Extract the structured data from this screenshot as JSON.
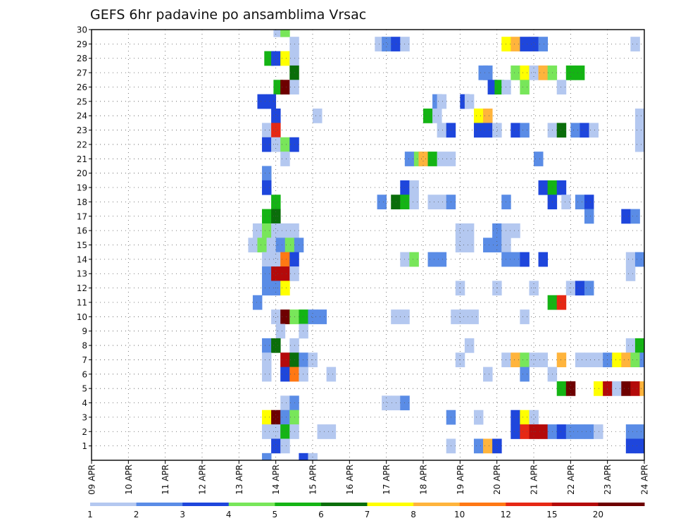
{
  "chart_data": {
    "type": "heatmap",
    "title": "GEFS 6hr padavine po ansamblima Vrsac",
    "xlabel": "",
    "ylabel": "",
    "x_tick_labels": [
      "09 APR",
      "10 APR",
      "11 APR",
      "12 APR",
      "13 APR",
      "14 APR",
      "15 APR",
      "16 APR",
      "17 APR",
      "18 APR",
      "19 APR",
      "20 APR",
      "21 APR",
      "22 APR",
      "23 APR",
      "24 APR"
    ],
    "y_tick_labels": [
      "1",
      "2",
      "3",
      "4",
      "5",
      "6",
      "7",
      "8",
      "9",
      "10",
      "11",
      "12",
      "13",
      "14",
      "15",
      "16",
      "17",
      "18",
      "19",
      "20",
      "21",
      "22",
      "23",
      "24",
      "25",
      "26",
      "27",
      "28",
      "29",
      "30"
    ],
    "x_unit": "6-hour step since 09 APR 00Z",
    "x_range": [
      0,
      60
    ],
    "y_range": [
      0,
      30
    ],
    "grid": true,
    "legend_placement": "bottom",
    "legend": {
      "labels": [
        "1",
        "2",
        "3",
        "4",
        "5",
        "6",
        "7",
        "8",
        "10",
        "12",
        "15",
        "20"
      ],
      "bins": [
        {
          "from": 1,
          "to": 2,
          "color": "#b4c8f0"
        },
        {
          "from": 2,
          "to": 3,
          "color": "#5a8ce6"
        },
        {
          "from": 3,
          "to": 4,
          "color": "#1e46dc"
        },
        {
          "from": 4,
          "to": 5,
          "color": "#78e65a"
        },
        {
          "from": 5,
          "to": 6,
          "color": "#14b414"
        },
        {
          "from": 6,
          "to": 7,
          "color": "#0a6e0a"
        },
        {
          "from": 7,
          "to": 8,
          "color": "#ffff00"
        },
        {
          "from": 8,
          "to": 10,
          "color": "#ffb43c"
        },
        {
          "from": 10,
          "to": 12,
          "color": "#ff7814"
        },
        {
          "from": 12,
          "to": 15,
          "color": "#e62814"
        },
        {
          "from": 15,
          "to": 20,
          "color": "#b40a0a"
        },
        {
          "from": 20,
          "to": 30,
          "color": "#6e0000"
        }
      ]
    },
    "cells": [
      {
        "member": 30,
        "cells": [
          [
            20.25,
            0
          ],
          [
            21,
            3
          ]
        ]
      },
      {
        "member": 29,
        "cells": [
          [
            22,
            0
          ],
          [
            31.25,
            0
          ],
          [
            32,
            1
          ],
          [
            33,
            2
          ],
          [
            34,
            0
          ],
          [
            45,
            6
          ],
          [
            46,
            7
          ],
          [
            47,
            2
          ],
          [
            48,
            2
          ],
          [
            49,
            1
          ],
          [
            59,
            0
          ]
        ]
      },
      {
        "member": 28,
        "cells": [
          [
            19.25,
            4
          ],
          [
            20,
            2
          ],
          [
            21,
            6
          ],
          [
            22,
            0
          ]
        ]
      },
      {
        "member": 27,
        "cells": [
          [
            22,
            5
          ],
          [
            42.5,
            1
          ],
          [
            43,
            1
          ],
          [
            46,
            3
          ],
          [
            47,
            6
          ],
          [
            48,
            0
          ],
          [
            49,
            7
          ],
          [
            50,
            3
          ],
          [
            52,
            4
          ],
          [
            53,
            4
          ]
        ]
      },
      {
        "member": 26,
        "cells": [
          [
            20.25,
            4
          ],
          [
            21,
            11
          ],
          [
            22,
            0
          ],
          [
            43.5,
            2
          ],
          [
            44.25,
            4
          ],
          [
            45,
            0
          ],
          [
            47,
            3
          ],
          [
            51,
            0
          ]
        ]
      },
      {
        "member": 25,
        "cells": [
          [
            18.5,
            2
          ],
          [
            19.5,
            2
          ],
          [
            37.5,
            1
          ],
          [
            38,
            0
          ],
          [
            40.5,
            2
          ],
          [
            41,
            0
          ]
        ]
      },
      {
        "member": 24,
        "cells": [
          [
            20,
            2
          ],
          [
            24.5,
            0
          ],
          [
            36.5,
            4
          ],
          [
            37.5,
            0
          ],
          [
            42,
            6
          ],
          [
            43,
            7
          ],
          [
            59.5,
            0
          ]
        ]
      },
      {
        "member": 23,
        "cells": [
          [
            19,
            0
          ],
          [
            20,
            9
          ],
          [
            38,
            0
          ],
          [
            39,
            2
          ],
          [
            42,
            2
          ],
          [
            43,
            2
          ],
          [
            44,
            0
          ],
          [
            46,
            2
          ],
          [
            47,
            1
          ],
          [
            50,
            0
          ],
          [
            51,
            5
          ],
          [
            52.5,
            1
          ],
          [
            53.5,
            2
          ],
          [
            54.5,
            0
          ],
          [
            59.5,
            0
          ]
        ]
      },
      {
        "member": 22,
        "cells": [
          [
            19,
            2
          ],
          [
            20,
            0
          ],
          [
            21,
            3
          ],
          [
            22,
            2
          ],
          [
            59.5,
            0
          ]
        ]
      },
      {
        "member": 21,
        "cells": [
          [
            21,
            0
          ],
          [
            34.5,
            1
          ],
          [
            35.5,
            3
          ],
          [
            36,
            7
          ],
          [
            37,
            4
          ],
          [
            38,
            0
          ],
          [
            39,
            0
          ],
          [
            48.5,
            1
          ]
        ]
      },
      {
        "member": 20,
        "cells": [
          [
            19,
            1
          ]
        ]
      },
      {
        "member": 19,
        "cells": [
          [
            19,
            2
          ],
          [
            34,
            2
          ],
          [
            35,
            0
          ],
          [
            49,
            2
          ],
          [
            50,
            4
          ],
          [
            51,
            2
          ]
        ]
      },
      {
        "member": 18,
        "cells": [
          [
            20,
            4
          ],
          [
            31.5,
            1
          ],
          [
            33,
            5
          ],
          [
            34,
            4
          ],
          [
            35,
            0
          ],
          [
            37,
            0
          ],
          [
            38,
            0
          ],
          [
            39,
            1
          ],
          [
            45,
            1
          ],
          [
            50,
            2
          ],
          [
            51.5,
            0
          ],
          [
            53,
            1
          ],
          [
            54,
            2
          ]
        ]
      },
      {
        "member": 17,
        "cells": [
          [
            19,
            4
          ],
          [
            20,
            5
          ],
          [
            54,
            1
          ],
          [
            58,
            2
          ],
          [
            59,
            1
          ]
        ]
      },
      {
        "member": 16,
        "cells": [
          [
            18,
            0
          ],
          [
            19,
            3
          ],
          [
            20,
            0
          ],
          [
            21,
            0
          ],
          [
            22,
            0
          ],
          [
            40,
            0
          ],
          [
            41,
            0
          ],
          [
            44,
            1
          ],
          [
            45,
            0
          ],
          [
            46,
            0
          ]
        ]
      },
      {
        "member": 15,
        "cells": [
          [
            17.5,
            0
          ],
          [
            18.5,
            3
          ],
          [
            19.5,
            0
          ],
          [
            20.5,
            1
          ],
          [
            21.5,
            3
          ],
          [
            22.5,
            1
          ],
          [
            40,
            0
          ],
          [
            41,
            0
          ],
          [
            43,
            1
          ],
          [
            44,
            1
          ],
          [
            45,
            0
          ]
        ]
      },
      {
        "member": 14,
        "cells": [
          [
            19,
            0
          ],
          [
            20,
            0
          ],
          [
            21,
            8
          ],
          [
            22,
            2
          ],
          [
            34,
            0
          ],
          [
            35,
            3
          ],
          [
            37,
            1
          ],
          [
            38,
            1
          ],
          [
            45,
            1
          ],
          [
            46,
            1
          ],
          [
            47,
            2
          ],
          [
            49,
            2
          ],
          [
            58.5,
            0
          ],
          [
            59.5,
            1
          ]
        ]
      },
      {
        "member": 13,
        "cells": [
          [
            19,
            1
          ],
          [
            20,
            10
          ],
          [
            21,
            10
          ],
          [
            22,
            0
          ],
          [
            58.5,
            0
          ]
        ]
      },
      {
        "member": 12,
        "cells": [
          [
            19,
            1
          ],
          [
            20,
            1
          ],
          [
            21,
            6
          ],
          [
            40,
            0
          ],
          [
            44,
            0
          ],
          [
            48,
            0
          ],
          [
            52,
            0
          ],
          [
            53,
            2
          ],
          [
            54,
            1
          ]
        ]
      },
      {
        "member": 11,
        "cells": [
          [
            18,
            1
          ],
          [
            50,
            4
          ],
          [
            51,
            9
          ]
        ]
      },
      {
        "member": 10,
        "cells": [
          [
            20,
            0
          ],
          [
            21,
            11
          ],
          [
            22,
            3
          ],
          [
            23,
            4
          ],
          [
            24,
            1
          ],
          [
            25,
            1
          ],
          [
            33,
            0
          ],
          [
            34,
            0
          ],
          [
            39.5,
            0
          ],
          [
            40.5,
            0
          ],
          [
            41.5,
            0
          ],
          [
            47,
            0
          ]
        ]
      },
      {
        "member": 9,
        "cells": [
          [
            20.5,
            0
          ],
          [
            23,
            0
          ]
        ]
      },
      {
        "member": 8,
        "cells": [
          [
            19,
            1
          ],
          [
            20,
            5
          ],
          [
            22,
            0
          ],
          [
            41,
            0
          ],
          [
            58.5,
            0
          ],
          [
            59.5,
            4
          ]
        ]
      },
      {
        "member": 7,
        "cells": [
          [
            19,
            0
          ],
          [
            21,
            10
          ],
          [
            22,
            5
          ],
          [
            23,
            1
          ],
          [
            24,
            0
          ],
          [
            40,
            0
          ],
          [
            45,
            0
          ],
          [
            46,
            7
          ],
          [
            47,
            3
          ],
          [
            48,
            0
          ],
          [
            49,
            0
          ],
          [
            51,
            7
          ],
          [
            53,
            0
          ],
          [
            54,
            0
          ],
          [
            55,
            0
          ],
          [
            56,
            1
          ],
          [
            57,
            6
          ],
          [
            58,
            7
          ],
          [
            59,
            3
          ],
          [
            60,
            1
          ]
        ]
      },
      {
        "member": 6,
        "cells": [
          [
            19,
            0
          ],
          [
            21,
            2
          ],
          [
            22,
            8
          ],
          [
            23,
            0
          ],
          [
            26,
            0
          ],
          [
            43,
            0
          ],
          [
            47,
            1
          ],
          [
            50,
            0
          ]
        ]
      },
      {
        "member": 5,
        "cells": [
          [
            51,
            4
          ],
          [
            52,
            11
          ],
          [
            55,
            6
          ],
          [
            56,
            10
          ],
          [
            57,
            0
          ],
          [
            58,
            11
          ],
          [
            59,
            10
          ],
          [
            60,
            7
          ]
        ]
      },
      {
        "member": 4,
        "cells": [
          [
            21,
            0
          ],
          [
            22,
            1
          ],
          [
            32,
            0
          ],
          [
            33,
            0
          ],
          [
            34,
            1
          ]
        ]
      },
      {
        "member": 3,
        "cells": [
          [
            19,
            6
          ],
          [
            20,
            11
          ],
          [
            21,
            1
          ],
          [
            22,
            3
          ],
          [
            39,
            1
          ],
          [
            42,
            0
          ],
          [
            46,
            2
          ],
          [
            47,
            6
          ],
          [
            48,
            0
          ]
        ]
      },
      {
        "member": 2,
        "cells": [
          [
            19,
            0
          ],
          [
            20,
            0
          ],
          [
            21,
            4
          ],
          [
            22,
            0
          ],
          [
            25,
            0
          ],
          [
            26,
            0
          ],
          [
            46,
            2
          ],
          [
            47,
            9
          ],
          [
            48,
            10
          ],
          [
            49,
            10
          ],
          [
            50,
            1
          ],
          [
            51,
            2
          ],
          [
            52,
            1
          ],
          [
            53,
            1
          ],
          [
            54,
            1
          ],
          [
            55,
            0
          ],
          [
            58.5,
            1
          ],
          [
            59.5,
            1
          ]
        ]
      },
      {
        "member": 1,
        "cells": [
          [
            20,
            2
          ],
          [
            21,
            0
          ],
          [
            39,
            0
          ],
          [
            42,
            1
          ],
          [
            43,
            7
          ],
          [
            44,
            2
          ],
          [
            58.5,
            2
          ],
          [
            59.5,
            2
          ]
        ]
      },
      {
        "member": 0,
        "cells": [
          [
            19,
            1
          ],
          [
            23,
            2
          ],
          [
            24,
            0
          ]
        ]
      }
    ]
  }
}
